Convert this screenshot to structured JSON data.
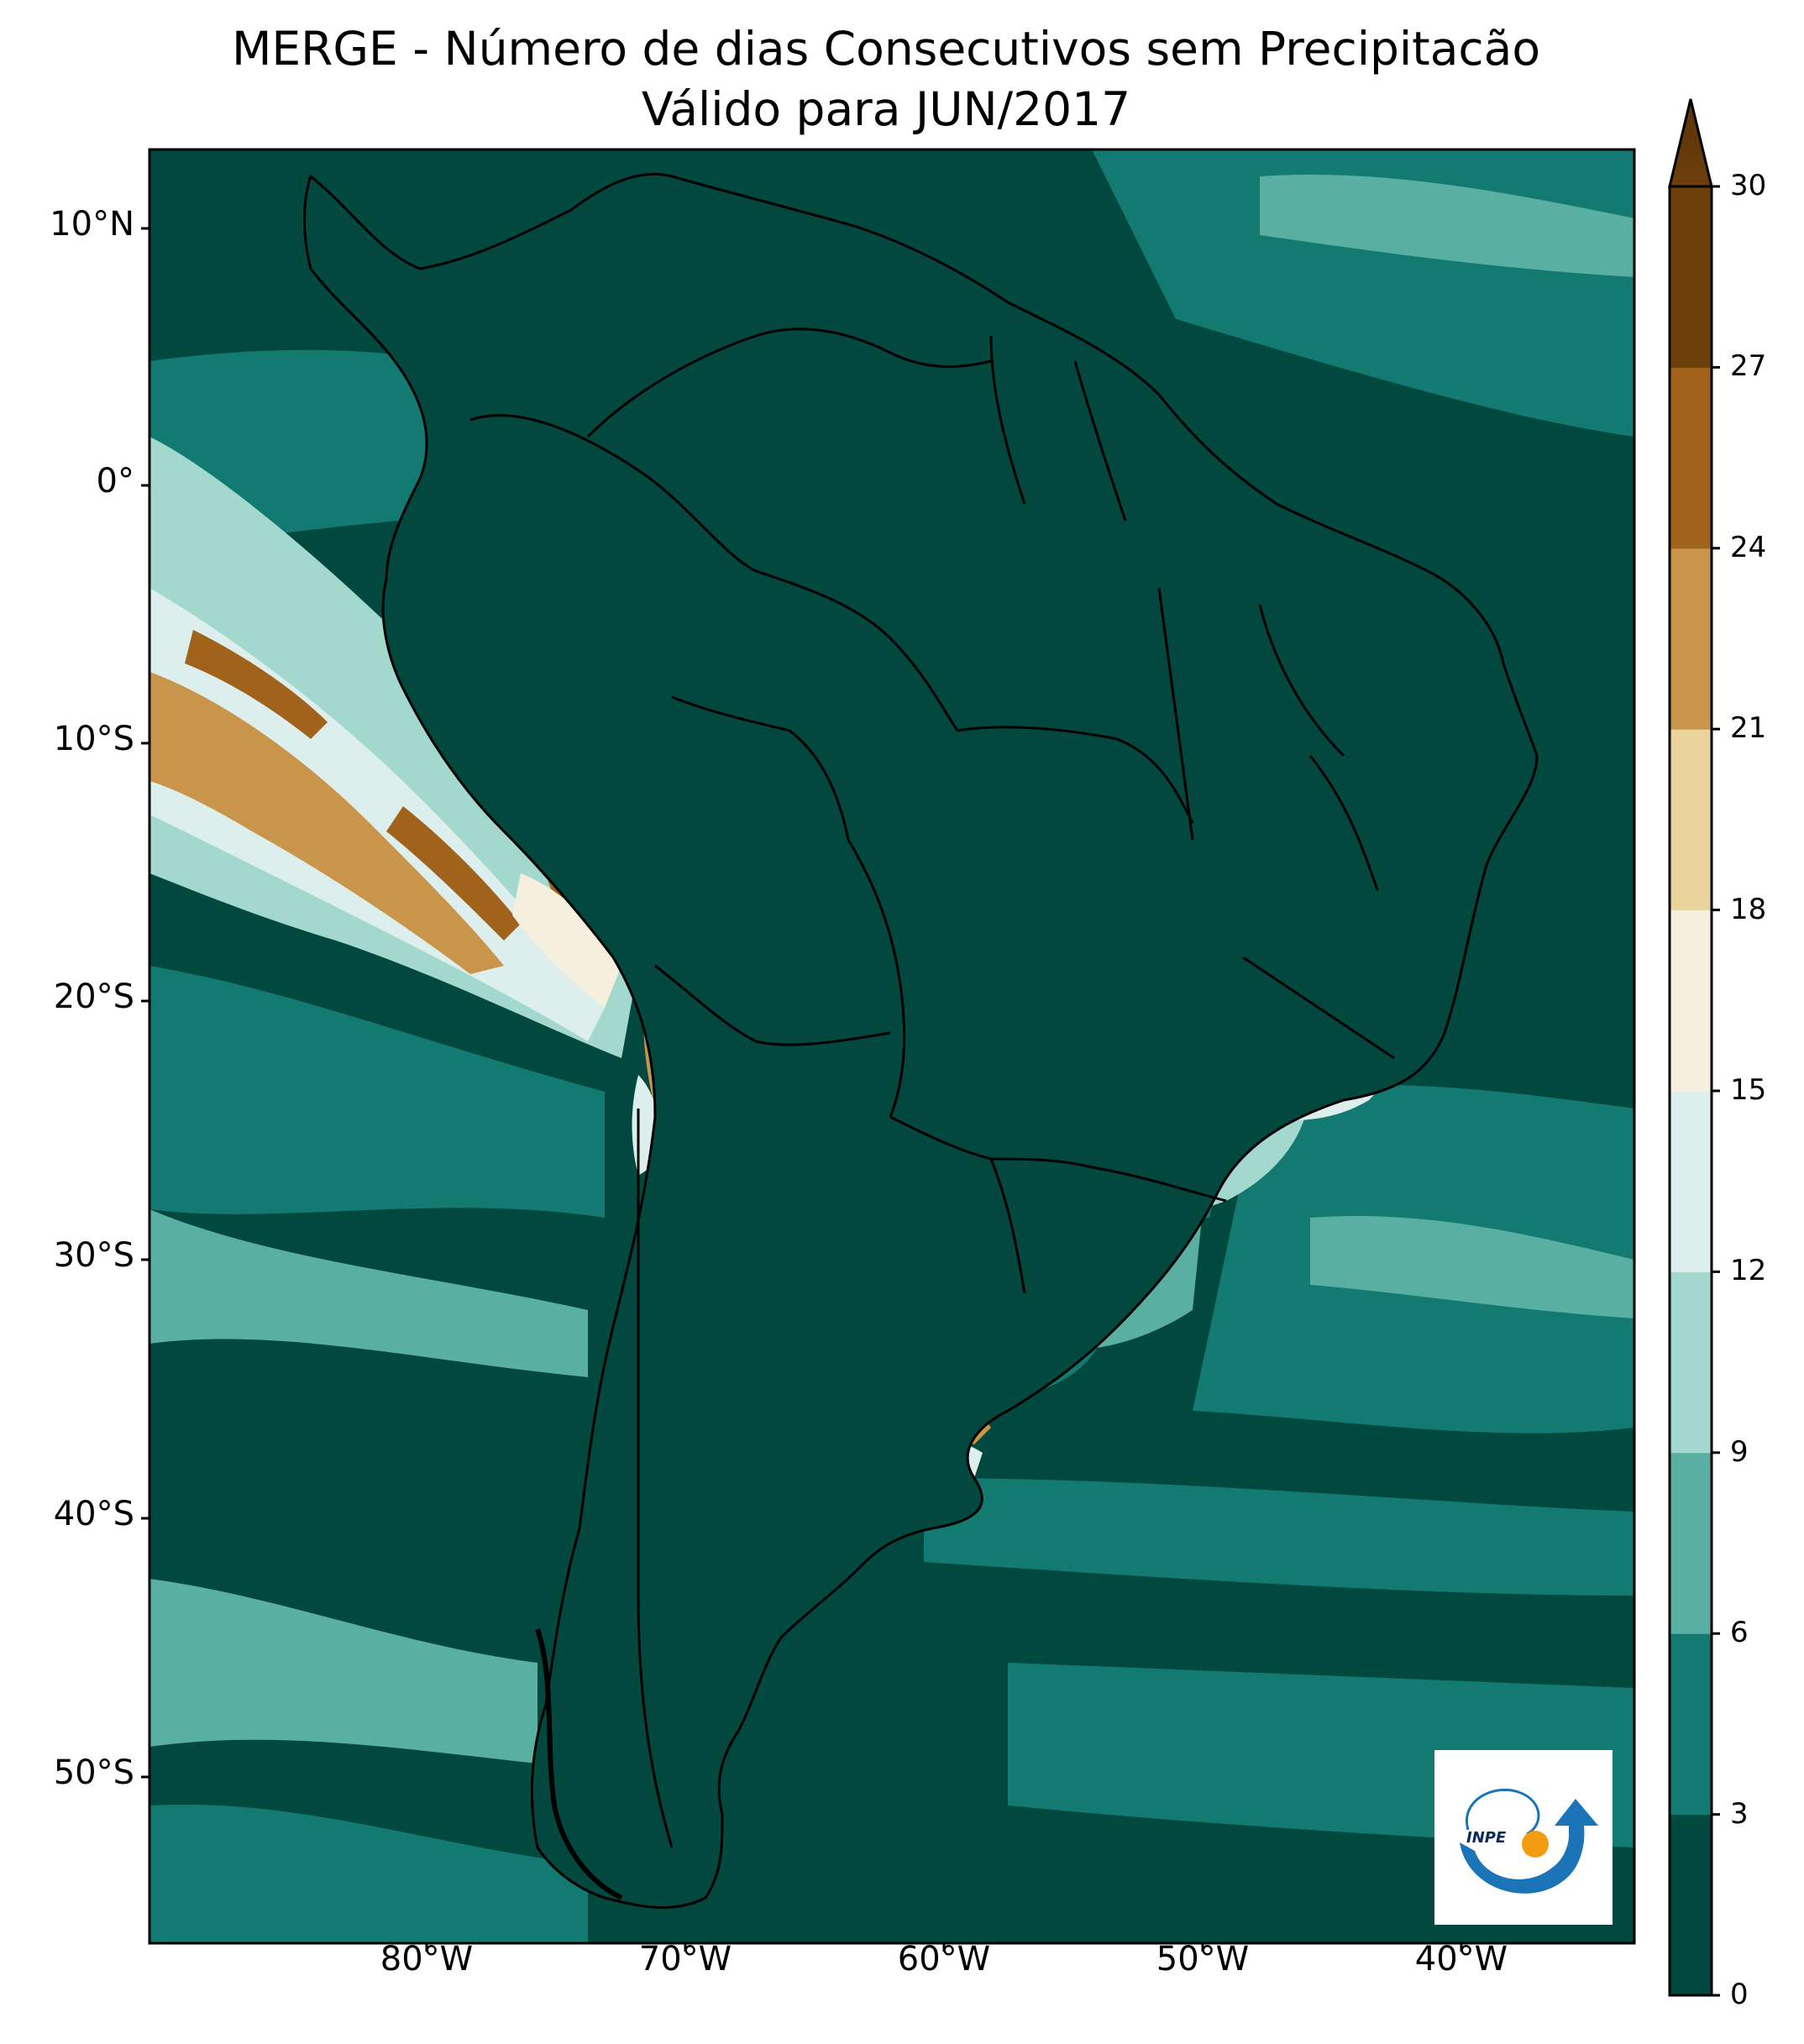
{
  "title": "MERGE - Número de dias Consecutivos sem Precipitacão",
  "subtitle": "Válido para JUN/2017",
  "lat_labels": [
    "10°N",
    "0°",
    "10°S",
    "20°S",
    "30°S",
    "40°S",
    "50°S"
  ],
  "lon_labels": [
    "80°W",
    "70°W",
    "60°W",
    "50°W",
    "40°W"
  ],
  "colorbar": {
    "ticks": [
      "0",
      "3",
      "6",
      "9",
      "12",
      "15",
      "18",
      "21",
      "24",
      "27",
      "30"
    ],
    "colors": [
      "#01493f",
      "#127a70",
      "#5aafa3",
      "#a3d8cf",
      "#dcefec",
      "#f5efdd",
      "#ead49b",
      "#c9954b",
      "#a1631c",
      "#6d3f0b"
    ],
    "extend": "max"
  },
  "logo_text": "INPE",
  "colors": {
    "ocean": "#01493f",
    "land_dark": "#02483e",
    "border": "#000000"
  }
}
